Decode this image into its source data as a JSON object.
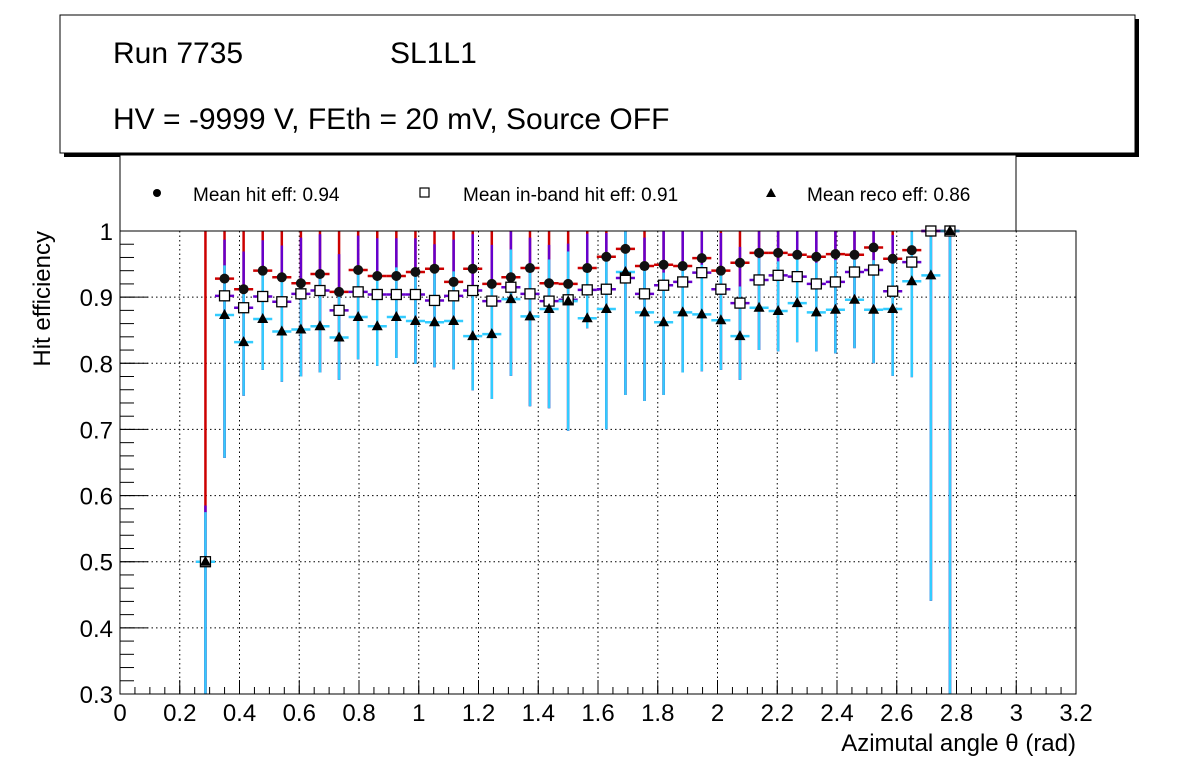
{
  "title_box": {
    "run": "Run 7735",
    "layer": "SL1L1",
    "conditions": "HV = -9999 V, FEth = 20 mV, Source OFF"
  },
  "legend": {
    "hit": "Mean hit  eff: 0.94",
    "inband": "Mean in-band hit eff: 0.91",
    "reco": "Mean reco eff: 0.86"
  },
  "colors": {
    "hit": "#cc0000",
    "inband": "#6600cc",
    "reco": "#33ccff"
  },
  "chart_data": {
    "type": "scatter",
    "xlabel": "Azimutal angle θ (rad)",
    "ylabel": "Hit efficiency",
    "xlim": [
      0,
      3.2
    ],
    "ylim": [
      0.3,
      1.0
    ],
    "grid": true,
    "legend_position": "top",
    "xticks": [
      "0",
      "0.2",
      "0.4",
      "0.6",
      "0.8",
      "1",
      "1.2",
      "1.4",
      "1.6",
      "1.8",
      "2",
      "2.2",
      "2.4",
      "2.6",
      "2.8",
      "3",
      "3.2"
    ],
    "yticks": [
      "0.3",
      "0.4",
      "0.5",
      "0.6",
      "0.7",
      "0.8",
      "0.9",
      "1"
    ],
    "x_start": 0.286,
    "bin_width": 0.0639,
    "series": [
      {
        "name": "Mean hit  eff: 0.94",
        "marker": "circle",
        "values": [
          0.5,
          0.928,
          0.912,
          0.94,
          0.93,
          0.921,
          0.935,
          0.908,
          0.941,
          0.932,
          0.932,
          0.938,
          0.943,
          0.923,
          0.943,
          0.92,
          0.93,
          0.944,
          0.921,
          0.92,
          0.944,
          0.961,
          0.973,
          0.947,
          0.949,
          0.947,
          0.959,
          0.94,
          0.952,
          0.967,
          0.967,
          0.964,
          0.961,
          0.965,
          0.964,
          0.975,
          0.958,
          0.971,
          1.0,
          1.0
        ]
      },
      {
        "name": "Mean in-band hit eff: 0.91",
        "marker": "open-square",
        "values": [
          0.5,
          0.902,
          0.884,
          0.901,
          0.893,
          0.905,
          0.91,
          0.88,
          0.908,
          0.904,
          0.904,
          0.904,
          0.895,
          0.902,
          0.91,
          0.894,
          0.915,
          0.905,
          0.894,
          0.896,
          0.911,
          0.912,
          0.929,
          0.905,
          0.918,
          0.923,
          0.937,
          0.912,
          0.891,
          0.926,
          0.933,
          0.931,
          0.92,
          0.923,
          0.938,
          0.941,
          0.909,
          0.953,
          1.0,
          1.0
        ]
      },
      {
        "name": "Mean reco eff: 0.86",
        "marker": "triangle",
        "values": [
          0.5,
          0.873,
          0.832,
          0.867,
          0.848,
          0.851,
          0.856,
          0.839,
          0.87,
          0.856,
          0.87,
          0.864,
          0.862,
          0.864,
          0.841,
          0.844,
          0.897,
          0.871,
          0.882,
          0.894,
          0.868,
          0.882,
          0.938,
          0.877,
          0.862,
          0.877,
          0.874,
          0.865,
          0.841,
          0.884,
          0.879,
          0.891,
          0.877,
          0.881,
          0.896,
          0.881,
          0.882,
          0.924,
          0.933,
          1.0
        ],
        "err_low_to": [
          0.3,
          0.657,
          0.751,
          0.79,
          0.772,
          0.78,
          0.786,
          0.775,
          0.806,
          0.796,
          0.808,
          0.799,
          0.794,
          0.791,
          0.759,
          0.746,
          0.781,
          0.735,
          0.732,
          0.698,
          0.853,
          0.7,
          0.752,
          0.743,
          0.752,
          0.786,
          0.788,
          0.79,
          0.775,
          0.82,
          0.818,
          0.832,
          0.818,
          0.815,
          0.823,
          0.8,
          0.781,
          0.779,
          0.441,
          0.3
        ]
      }
    ]
  }
}
